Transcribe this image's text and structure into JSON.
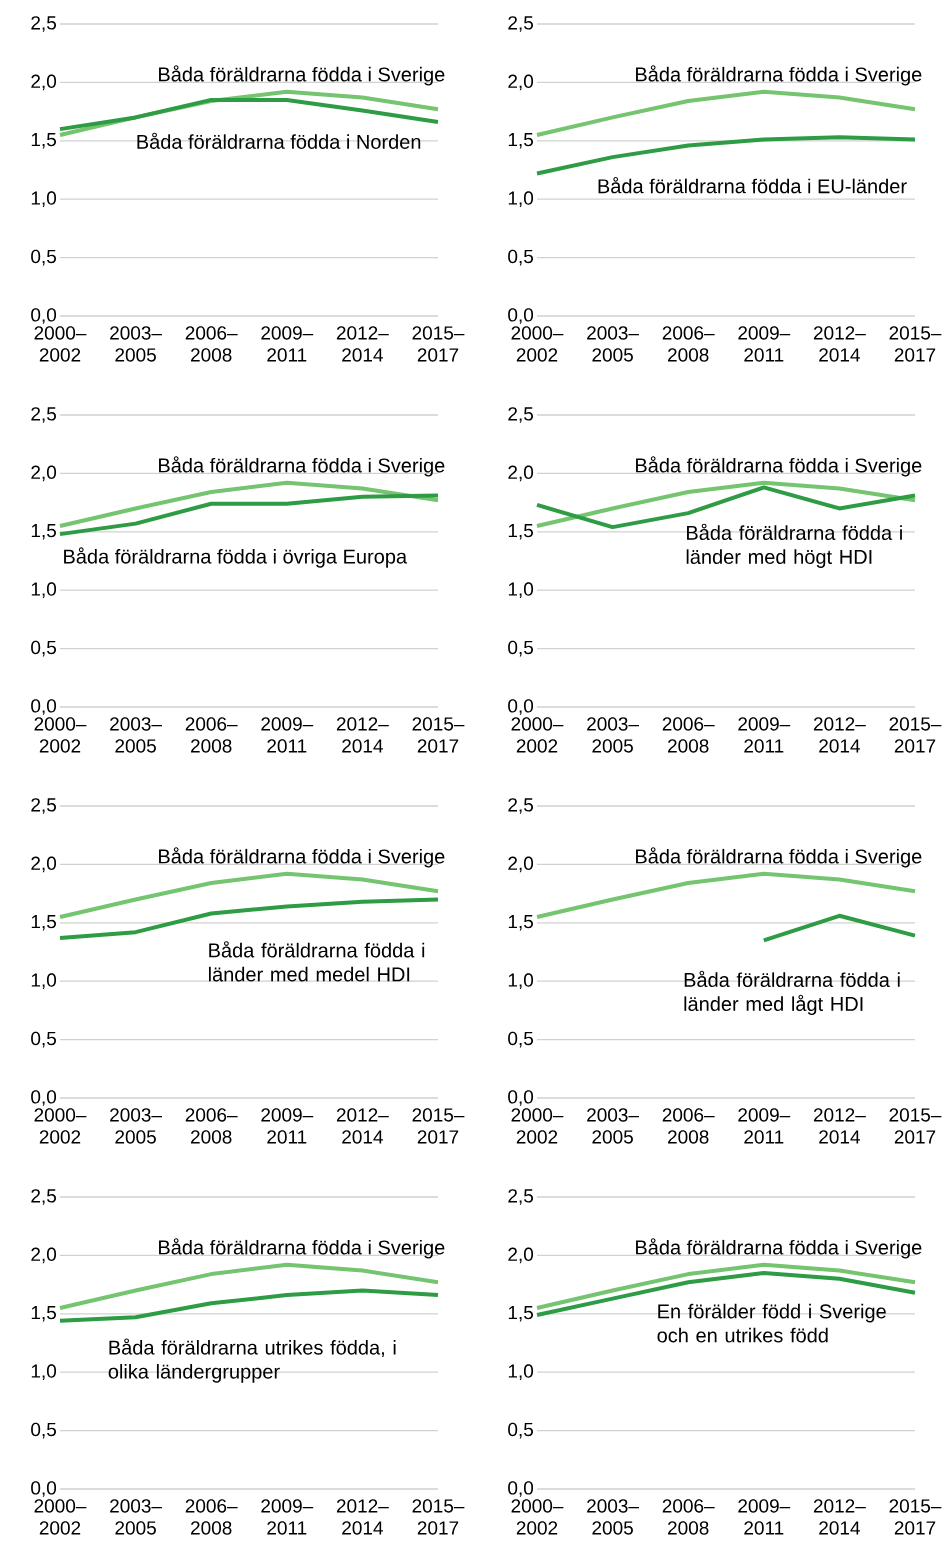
{
  "chart_data": [
    {
      "type": "line",
      "categories": [
        "2000–2002",
        "2003–2005",
        "2006–2008",
        "2009–2011",
        "2012–2014",
        "2015–2017"
      ],
      "ylim": [
        0,
        2.5
      ],
      "yticks": [
        {
          "value": 0,
          "label": "0,0"
        },
        {
          "value": 0.5,
          "label": "0,5"
        },
        {
          "value": 1,
          "label": "1,0"
        },
        {
          "value": 1.5,
          "label": "1,5"
        },
        {
          "value": 2,
          "label": "2,0"
        },
        {
          "value": 2.5,
          "label": "2,5"
        }
      ],
      "grid": "y",
      "series": [
        {
          "name": "Båda föräldrarna födda i Sverige",
          "color": "#74c470",
          "values": [
            1.55,
            1.7,
            1.84,
            1.92,
            1.87,
            1.77
          ]
        },
        {
          "name": "Båda föräldrarna födda i Norden",
          "color": "#2e9b45",
          "values": [
            1.6,
            1.7,
            1.85,
            1.85,
            1.76,
            1.66
          ]
        }
      ]
    },
    {
      "type": "line",
      "categories": [
        "2000–2002",
        "2003–2005",
        "2006–2008",
        "2009–2011",
        "2012–2014",
        "2015–2017"
      ],
      "ylim": [
        0,
        2.5
      ],
      "yticks": [
        {
          "value": 0,
          "label": "0,0"
        },
        {
          "value": 0.5,
          "label": "0,5"
        },
        {
          "value": 1,
          "label": "1,0"
        },
        {
          "value": 1.5,
          "label": "1,5"
        },
        {
          "value": 2,
          "label": "2,0"
        },
        {
          "value": 2.5,
          "label": "2,5"
        }
      ],
      "grid": "y",
      "series": [
        {
          "name": "Båda föräldrarna födda i Sverige",
          "color": "#74c470",
          "values": [
            1.55,
            1.7,
            1.84,
            1.92,
            1.87,
            1.77
          ]
        },
        {
          "name": "Båda föräldrarna födda i EU-länder",
          "color": "#2e9b45",
          "values": [
            1.22,
            1.36,
            1.46,
            1.51,
            1.53,
            1.51
          ]
        }
      ]
    },
    {
      "type": "line",
      "categories": [
        "2000–2002",
        "2003–2005",
        "2006–2008",
        "2009–2011",
        "2012–2014",
        "2015–2017"
      ],
      "ylim": [
        0,
        2.5
      ],
      "yticks": [
        {
          "value": 0,
          "label": "0,0"
        },
        {
          "value": 0.5,
          "label": "0,5"
        },
        {
          "value": 1,
          "label": "1,0"
        },
        {
          "value": 1.5,
          "label": "1,5"
        },
        {
          "value": 2,
          "label": "2,0"
        },
        {
          "value": 2.5,
          "label": "2,5"
        }
      ],
      "grid": "y",
      "series": [
        {
          "name": "Båda föräldrarna födda i Sverige",
          "color": "#74c470",
          "values": [
            1.55,
            1.7,
            1.84,
            1.92,
            1.87,
            1.77
          ]
        },
        {
          "name": "Båda föräldrarna födda i övriga Europa",
          "color": "#2e9b45",
          "values": [
            1.48,
            1.57,
            1.74,
            1.74,
            1.8,
            1.81
          ]
        }
      ]
    },
    {
      "type": "line",
      "categories": [
        "2000–2002",
        "2003–2005",
        "2006–2008",
        "2009–2011",
        "2012–2014",
        "2015–2017"
      ],
      "ylim": [
        0,
        2.5
      ],
      "yticks": [
        {
          "value": 0,
          "label": "0,0"
        },
        {
          "value": 0.5,
          "label": "0,5"
        },
        {
          "value": 1,
          "label": "1,0"
        },
        {
          "value": 1.5,
          "label": "1,5"
        },
        {
          "value": 2,
          "label": "2,0"
        },
        {
          "value": 2.5,
          "label": "2,5"
        }
      ],
      "grid": "y",
      "series": [
        {
          "name": "Båda föräldrarna födda i Sverige",
          "color": "#74c470",
          "values": [
            1.55,
            1.7,
            1.84,
            1.92,
            1.87,
            1.77
          ]
        },
        {
          "name": "Båda föräldrarna födda i länder med högt HDI",
          "color": "#2e9b45",
          "values": [
            1.73,
            1.54,
            1.66,
            1.88,
            1.7,
            1.81
          ]
        }
      ]
    },
    {
      "type": "line",
      "categories": [
        "2000–2002",
        "2003–2005",
        "2006–2008",
        "2009–2011",
        "2012–2014",
        "2015–2017"
      ],
      "ylim": [
        0,
        2.5
      ],
      "yticks": [
        {
          "value": 0,
          "label": "0,0"
        },
        {
          "value": 0.5,
          "label": "0,5"
        },
        {
          "value": 1,
          "label": "1,0"
        },
        {
          "value": 1.5,
          "label": "1,5"
        },
        {
          "value": 2,
          "label": "2,0"
        },
        {
          "value": 2.5,
          "label": "2,5"
        }
      ],
      "grid": "y",
      "series": [
        {
          "name": "Båda föräldrarna födda i Sverige",
          "color": "#74c470",
          "values": [
            1.55,
            1.7,
            1.84,
            1.92,
            1.87,
            1.77
          ]
        },
        {
          "name": "Båda föräldrarna födda i länder med medel HDI",
          "color": "#2e9b45",
          "values": [
            1.37,
            1.42,
            1.58,
            1.64,
            1.68,
            1.7
          ]
        }
      ]
    },
    {
      "type": "line",
      "categories": [
        "2000–2002",
        "2003–2005",
        "2006–2008",
        "2009–2011",
        "2012–2014",
        "2015–2017"
      ],
      "ylim": [
        0,
        2.5
      ],
      "yticks": [
        {
          "value": 0,
          "label": "0,0"
        },
        {
          "value": 0.5,
          "label": "0,5"
        },
        {
          "value": 1,
          "label": "1,0"
        },
        {
          "value": 1.5,
          "label": "1,5"
        },
        {
          "value": 2,
          "label": "2,0"
        },
        {
          "value": 2.5,
          "label": "2,5"
        }
      ],
      "grid": "y",
      "series": [
        {
          "name": "Båda föräldrarna födda i Sverige",
          "color": "#74c470",
          "values": [
            1.55,
            1.7,
            1.84,
            1.92,
            1.87,
            1.77
          ]
        },
        {
          "name": "Båda föräldrarna födda i länder med lågt HDI",
          "color": "#2e9b45",
          "values": [
            null,
            null,
            null,
            1.35,
            1.56,
            1.39
          ]
        }
      ]
    },
    {
      "type": "line",
      "categories": [
        "2000–2002",
        "2003–2005",
        "2006–2008",
        "2009–2011",
        "2012–2014",
        "2015–2017"
      ],
      "ylim": [
        0,
        2.5
      ],
      "yticks": [
        {
          "value": 0,
          "label": "0,0"
        },
        {
          "value": 0.5,
          "label": "0,5"
        },
        {
          "value": 1,
          "label": "1,0"
        },
        {
          "value": 1.5,
          "label": "1,5"
        },
        {
          "value": 2,
          "label": "2,0"
        },
        {
          "value": 2.5,
          "label": "2,5"
        }
      ],
      "grid": "y",
      "series": [
        {
          "name": "Båda föräldrarna födda i Sverige",
          "color": "#74c470",
          "values": [
            1.55,
            1.7,
            1.84,
            1.92,
            1.87,
            1.77
          ]
        },
        {
          "name": "Båda föräldrarna utrikes födda, i olika ländergrupper",
          "color": "#2e9b45",
          "values": [
            1.44,
            1.47,
            1.59,
            1.66,
            1.7,
            1.66
          ]
        }
      ]
    },
    {
      "type": "line",
      "categories": [
        "2000–2002",
        "2003–2005",
        "2006–2008",
        "2009–2011",
        "2012–2014",
        "2015–2017"
      ],
      "ylim": [
        0,
        2.5
      ],
      "yticks": [
        {
          "value": 0,
          "label": "0,0"
        },
        {
          "value": 0.5,
          "label": "0,5"
        },
        {
          "value": 1,
          "label": "1,0"
        },
        {
          "value": 1.5,
          "label": "1,5"
        },
        {
          "value": 2,
          "label": "2,0"
        },
        {
          "value": 2.5,
          "label": "2,5"
        }
      ],
      "grid": "y",
      "series": [
        {
          "name": "Båda föräldrarna födda i Sverige",
          "color": "#74c470",
          "values": [
            1.55,
            1.7,
            1.84,
            1.92,
            1.87,
            1.77
          ]
        },
        {
          "name": "En förälder född i Sverige och en utrikes född",
          "color": "#2e9b45",
          "values": [
            1.49,
            1.63,
            1.77,
            1.85,
            1.8,
            1.68
          ]
        }
      ]
    }
  ]
}
